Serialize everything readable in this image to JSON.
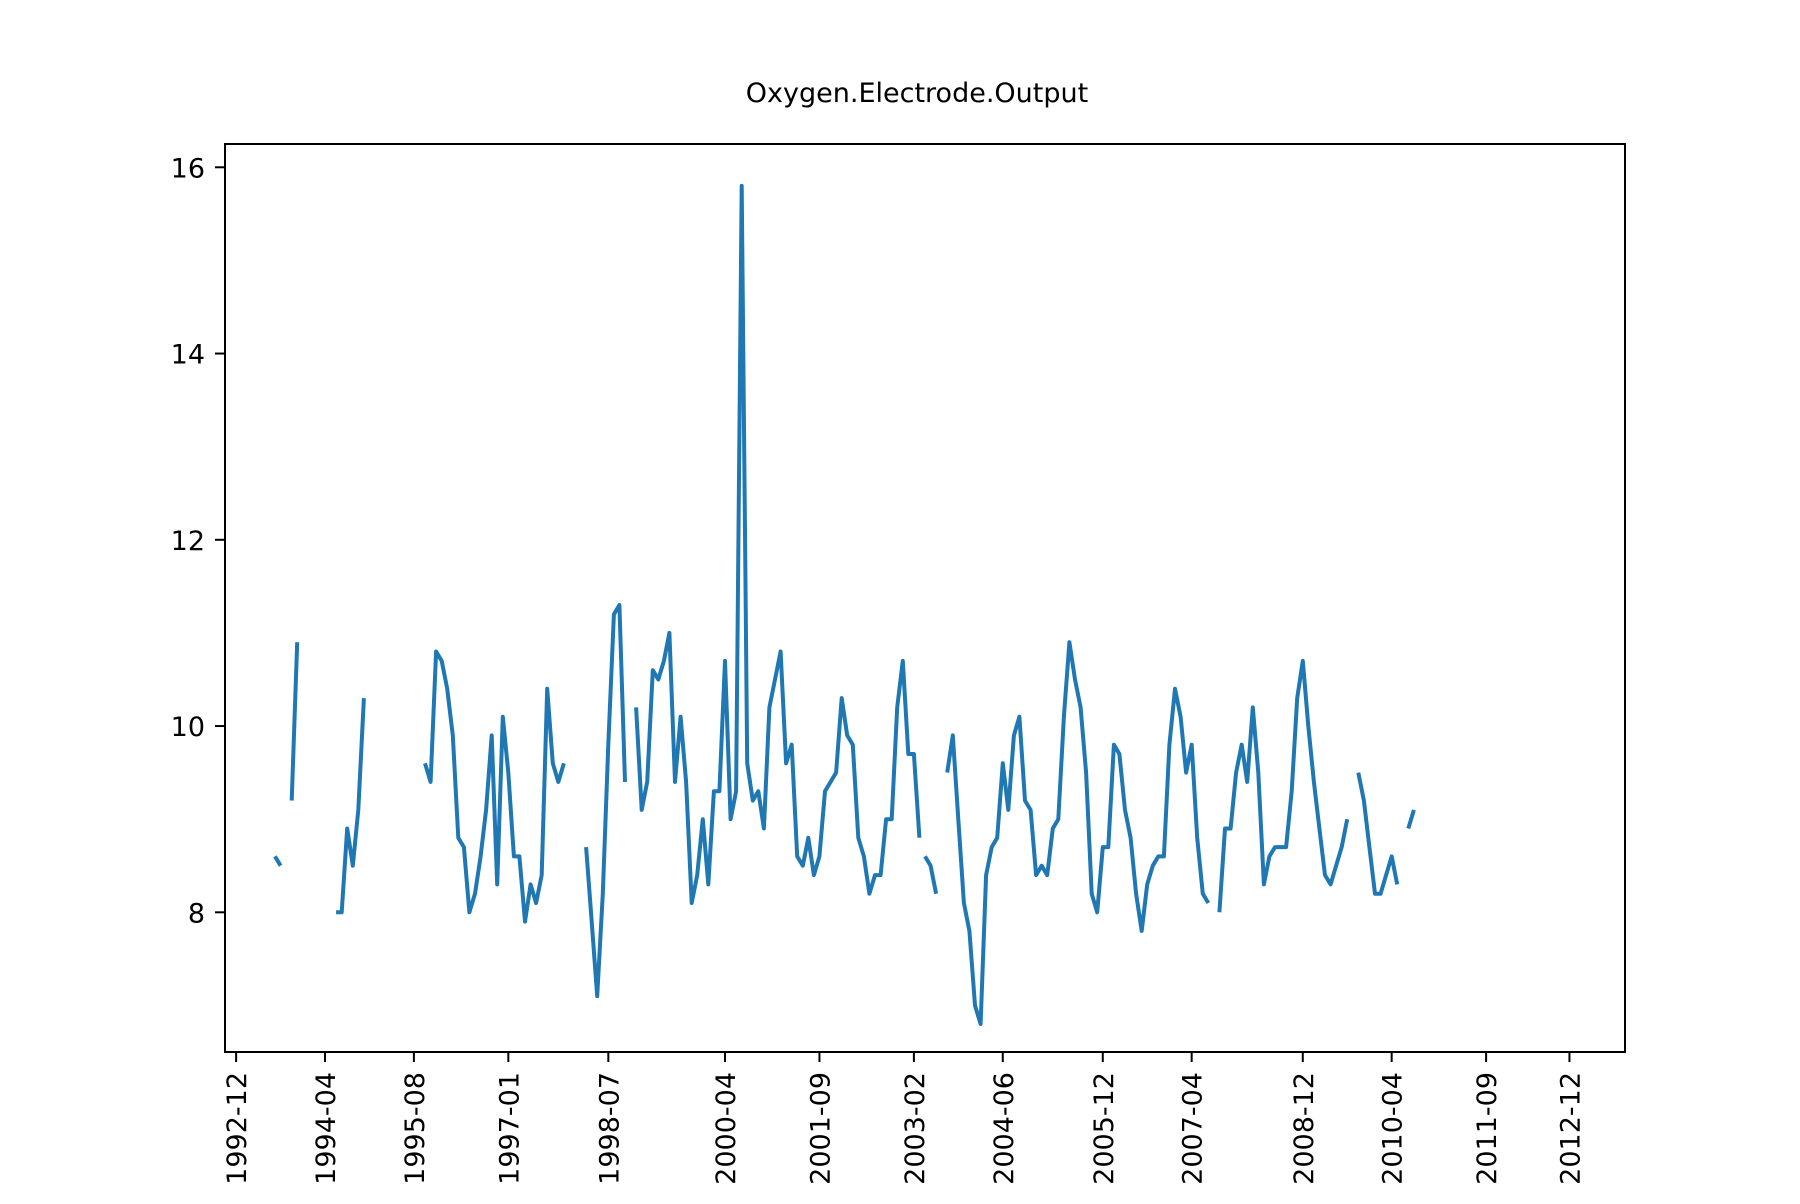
{
  "chart_data": {
    "type": "line",
    "title": "Oxygen.Electrode.Output",
    "xlabel": "",
    "ylabel": "",
    "xlim": [
      "1992-10",
      "2013-10"
    ],
    "ylim": [
      6.5,
      16.25
    ],
    "yticks": [
      8,
      10,
      12,
      14,
      16
    ],
    "ytick_labels": [
      "8",
      "10",
      "12",
      "14",
      "16"
    ],
    "xticks": [
      "1992-12",
      "1994-04",
      "1995-08",
      "1997-01",
      "1998-07",
      "2000-04",
      "2001-09",
      "2003-02",
      "2004-06",
      "2005-12",
      "2007-04",
      "2008-12",
      "2010-04",
      "2011-09",
      "2012-12"
    ],
    "xtick_labels": [
      "1992-12",
      "1994-04",
      "1995-08",
      "1997-01",
      "1998-07",
      "2000-04",
      "2001-09",
      "2003-02",
      "2004-06",
      "2005-12",
      "2007-04",
      "2008-12",
      "2010-04",
      "2011-09",
      "2012-12"
    ],
    "grid": false,
    "legend": "none",
    "series": [
      {
        "color": "#1f77b4",
        "segments": [
          [
            [
              "1993-07",
              8.6
            ],
            [
              "1993-08",
              8.5
            ]
          ],
          [
            [
              "1993-10",
              9.2
            ],
            [
              "1993-11",
              10.9
            ]
          ],
          [
            [
              "1994-06",
              8.0
            ],
            [
              "1994-07",
              8.0
            ],
            [
              "1994-08",
              8.9
            ],
            [
              "1994-09",
              8.5
            ],
            [
              "1994-10",
              9.1
            ],
            [
              "1994-11",
              10.3
            ]
          ],
          [
            [
              "1995-10",
              9.6
            ],
            [
              "1995-11",
              9.4
            ],
            [
              "1995-12",
              10.8
            ],
            [
              "1996-01",
              10.7
            ],
            [
              "1996-02",
              10.4
            ],
            [
              "1996-03",
              9.9
            ],
            [
              "1996-04",
              8.8
            ],
            [
              "1996-05",
              8.7
            ],
            [
              "1996-06",
              8.0
            ],
            [
              "1996-07",
              8.2
            ],
            [
              "1996-08",
              8.6
            ],
            [
              "1996-09",
              9.1
            ],
            [
              "1996-10",
              9.9
            ],
            [
              "1996-11",
              8.3
            ],
            [
              "1996-12",
              10.1
            ],
            [
              "1997-01",
              9.5
            ],
            [
              "1997-02",
              8.6
            ],
            [
              "1997-03",
              8.6
            ],
            [
              "1997-04",
              7.9
            ],
            [
              "1997-05",
              8.3
            ],
            [
              "1997-06",
              8.1
            ],
            [
              "1997-07",
              8.4
            ],
            [
              "1997-08",
              10.4
            ],
            [
              "1997-09",
              9.6
            ],
            [
              "1997-10",
              9.4
            ],
            [
              "1997-11",
              9.6
            ]
          ],
          [
            [
              "1998-03",
              8.7
            ],
            [
              "1998-04",
              7.9
            ],
            [
              "1998-05",
              7.1
            ],
            [
              "1998-06",
              8.2
            ],
            [
              "1998-07",
              9.8
            ],
            [
              "1998-08",
              11.2
            ],
            [
              "1998-09",
              11.3
            ],
            [
              "1998-10",
              9.4
            ]
          ],
          [
            [
              "1998-12",
              10.2
            ],
            [
              "1999-01",
              9.1
            ],
            [
              "1999-02",
              9.4
            ],
            [
              "1999-03",
              10.6
            ],
            [
              "1999-04",
              10.5
            ],
            [
              "1999-05",
              10.7
            ],
            [
              "1999-06",
              11.0
            ],
            [
              "1999-07",
              9.4
            ],
            [
              "1999-08",
              10.1
            ],
            [
              "1999-09",
              9.4
            ],
            [
              "1999-10",
              8.1
            ],
            [
              "1999-11",
              8.4
            ],
            [
              "1999-12",
              9.0
            ],
            [
              "2000-01",
              8.3
            ],
            [
              "2000-02",
              9.3
            ],
            [
              "2000-03",
              9.3
            ],
            [
              "2000-04",
              10.7
            ],
            [
              "2000-05",
              9.0
            ],
            [
              "2000-06",
              9.3
            ],
            [
              "2000-07",
              15.8
            ],
            [
              "2000-08",
              9.6
            ],
            [
              "2000-09",
              9.2
            ],
            [
              "2000-10",
              9.3
            ],
            [
              "2000-11",
              8.9
            ],
            [
              "2000-12",
              10.2
            ],
            [
              "2001-01",
              10.5
            ],
            [
              "2001-02",
              10.8
            ],
            [
              "2001-03",
              9.6
            ],
            [
              "2001-04",
              9.8
            ],
            [
              "2001-05",
              8.6
            ],
            [
              "2001-06",
              8.5
            ],
            [
              "2001-07",
              8.8
            ],
            [
              "2001-08",
              8.4
            ],
            [
              "2001-09",
              8.6
            ],
            [
              "2001-10",
              9.3
            ],
            [
              "2001-11",
              9.4
            ],
            [
              "2001-12",
              9.5
            ],
            [
              "2002-01",
              10.3
            ],
            [
              "2002-02",
              9.9
            ],
            [
              "2002-03",
              9.8
            ],
            [
              "2002-04",
              8.8
            ],
            [
              "2002-05",
              8.6
            ],
            [
              "2002-06",
              8.2
            ],
            [
              "2002-07",
              8.4
            ],
            [
              "2002-08",
              8.4
            ],
            [
              "2002-09",
              9.0
            ],
            [
              "2002-10",
              9.0
            ],
            [
              "2002-11",
              10.2
            ],
            [
              "2002-12",
              10.7
            ],
            [
              "2003-01",
              9.7
            ],
            [
              "2003-02",
              9.7
            ],
            [
              "2003-03",
              8.8
            ]
          ],
          [
            [
              "2003-04",
              8.6
            ],
            [
              "2003-05",
              8.5
            ],
            [
              "2003-06",
              8.2
            ]
          ],
          [
            [
              "2003-08",
              9.5
            ],
            [
              "2003-09",
              9.9
            ],
            [
              "2003-10",
              9.0
            ],
            [
              "2003-11",
              8.1
            ],
            [
              "2003-12",
              7.8
            ],
            [
              "2004-01",
              7.0
            ],
            [
              "2004-02",
              6.8
            ],
            [
              "2004-03",
              8.4
            ],
            [
              "2004-04",
              8.7
            ],
            [
              "2004-05",
              8.8
            ],
            [
              "2004-06",
              9.6
            ],
            [
              "2004-07",
              9.1
            ],
            [
              "2004-08",
              9.9
            ],
            [
              "2004-09",
              10.1
            ],
            [
              "2004-10",
              9.2
            ],
            [
              "2004-11",
              9.1
            ],
            [
              "2004-12",
              8.4
            ],
            [
              "2005-01",
              8.5
            ],
            [
              "2005-02",
              8.4
            ],
            [
              "2005-03",
              8.9
            ],
            [
              "2005-04",
              9.0
            ],
            [
              "2005-05",
              10.1
            ],
            [
              "2005-06",
              10.9
            ],
            [
              "2005-07",
              10.5
            ],
            [
              "2005-08",
              10.2
            ],
            [
              "2005-09",
              9.5
            ],
            [
              "2005-10",
              8.2
            ],
            [
              "2005-11",
              8.0
            ],
            [
              "2005-12",
              8.7
            ],
            [
              "2006-01",
              8.7
            ],
            [
              "2006-02",
              9.8
            ],
            [
              "2006-03",
              9.7
            ],
            [
              "2006-04",
              9.1
            ],
            [
              "2006-05",
              8.8
            ],
            [
              "2006-06",
              8.2
            ],
            [
              "2006-07",
              7.8
            ],
            [
              "2006-08",
              8.3
            ],
            [
              "2006-09",
              8.5
            ],
            [
              "2006-10",
              8.6
            ],
            [
              "2006-11",
              8.6
            ],
            [
              "2006-12",
              9.8
            ],
            [
              "2007-01",
              10.4
            ],
            [
              "2007-02",
              10.1
            ],
            [
              "2007-03",
              9.5
            ],
            [
              "2007-04",
              9.8
            ],
            [
              "2007-05",
              8.8
            ],
            [
              "2007-06",
              8.2
            ],
            [
              "2007-07",
              8.1
            ]
          ],
          [
            [
              "2007-09",
              8.0
            ],
            [
              "2007-10",
              8.9
            ],
            [
              "2007-11",
              8.9
            ],
            [
              "2007-12",
              9.5
            ],
            [
              "2008-01",
              9.8
            ],
            [
              "2008-02",
              9.4
            ],
            [
              "2008-03",
              10.2
            ],
            [
              "2008-04",
              9.5
            ],
            [
              "2008-05",
              8.3
            ],
            [
              "2008-06",
              8.6
            ],
            [
              "2008-07",
              8.7
            ],
            [
              "2008-08",
              8.7
            ],
            [
              "2008-09",
              8.7
            ],
            [
              "2008-10",
              9.3
            ],
            [
              "2008-11",
              10.3
            ],
            [
              "2008-12",
              10.7
            ],
            [
              "2009-01",
              10.0
            ],
            [
              "2009-02",
              9.4
            ],
            [
              "2009-03",
              8.9
            ],
            [
              "2009-04",
              8.4
            ],
            [
              "2009-05",
              8.3
            ],
            [
              "2009-06",
              8.5
            ],
            [
              "2009-07",
              8.7
            ],
            [
              "2009-08",
              9.0
            ]
          ],
          [
            [
              "2009-10",
              9.5
            ],
            [
              "2009-11",
              9.2
            ],
            [
              "2009-12",
              8.7
            ],
            [
              "2010-01",
              8.2
            ],
            [
              "2010-02",
              8.2
            ],
            [
              "2010-03",
              8.4
            ],
            [
              "2010-04",
              8.6
            ],
            [
              "2010-05",
              8.3
            ]
          ],
          [
            [
              "2010-07",
              8.9
            ],
            [
              "2010-08",
              9.1
            ]
          ]
        ]
      }
    ]
  }
}
